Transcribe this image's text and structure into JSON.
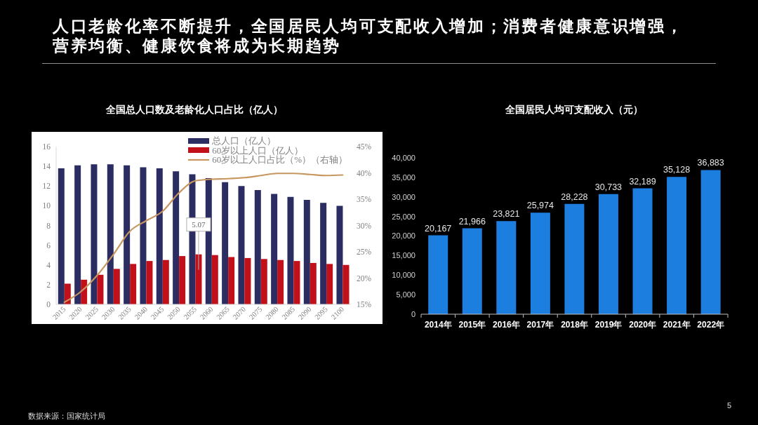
{
  "chart_data": [
    {
      "type": "bar",
      "title": "全国总人口数及老龄化人口占比（亿人）",
      "annotations": [
        "人口老龄化率不断提升，全国居民人均可支配收入增加；消费者健康意识增强，营养均衡、健康饮食将成为长期趋势"
      ],
      "categories": [
        "2015",
        "2020",
        "2025",
        "2030",
        "2035",
        "2040",
        "2045",
        "2050",
        "2055",
        "2060",
        "2065",
        "2070",
        "2075",
        "2080",
        "2085",
        "2090",
        "2095",
        "2100"
      ],
      "series": [
        {
          "name": "总人口（亿人）",
          "color": "#2b2c61",
          "values": [
            13.8,
            14.1,
            14.2,
            14.2,
            14.1,
            13.9,
            13.8,
            13.5,
            13.2,
            12.8,
            12.4,
            12.0,
            11.6,
            11.2,
            10.9,
            10.6,
            10.3,
            10.0
          ]
        },
        {
          "name": "60岁以上人口（亿人）",
          "color": "#c1101a",
          "values": [
            2.1,
            2.5,
            3.0,
            3.6,
            4.1,
            4.4,
            4.5,
            4.9,
            5.07,
            5.0,
            4.8,
            4.7,
            4.6,
            4.5,
            4.4,
            4.2,
            4.1,
            4.0
          ],
          "value_labels": [
            null,
            null,
            null,
            null,
            null,
            null,
            null,
            null,
            "5.07",
            null,
            null,
            null,
            null,
            null,
            null,
            null,
            null,
            null
          ]
        },
        {
          "name": "60岁以上人口占比（%）（右轴）",
          "type": "line",
          "axis": "y2",
          "color": "#c8965f",
          "values": [
            15.4,
            17.4,
            20.5,
            24.5,
            28.9,
            30.9,
            32.7,
            36.2,
            38.5,
            38.8,
            38.9,
            39.1,
            39.5,
            39.9,
            39.9,
            39.7,
            39.5,
            39.6
          ]
        }
      ],
      "ylim": [
        0,
        16
      ],
      "yticks": [
        0,
        2,
        4,
        6,
        8,
        10,
        12,
        14,
        16
      ],
      "y2lim": [
        15,
        45
      ],
      "y2ticks": [
        {
          "value": 15,
          "label": "15%"
        },
        {
          "value": 20,
          "label": "20%"
        },
        {
          "value": 25,
          "label": "25%"
        },
        {
          "value": 30,
          "label": "30%"
        },
        {
          "value": 35,
          "label": "35%"
        },
        {
          "value": 40,
          "label": "40%"
        },
        {
          "value": 45,
          "label": "45%"
        }
      ],
      "legend": "top right",
      "marker": "none",
      "line_style": "solid"
    },
    {
      "type": "bar",
      "title": "全国居民人均可支配收入（元）",
      "annotations": [
        "数据来源：国家统计局",
        "5"
      ],
      "categories": [
        "2014年",
        "2015年",
        "2016年",
        "2017年",
        "2018年",
        "2019年",
        "2020年",
        "2021年",
        "2022年"
      ],
      "values": [
        20167,
        21966,
        23821,
        25974,
        28228,
        30733,
        32189,
        35128,
        36883
      ],
      "color": "#1c7fe0",
      "value_labels": [
        "20,167",
        "21,966",
        "23,821",
        "25,974",
        "28,228",
        "30,733",
        "32,189",
        "35,128",
        "36,883"
      ],
      "ylim": [
        0,
        40000
      ],
      "yticks": [
        0,
        {
          "value": 5000,
          "label": "5,000"
        },
        {
          "value": 10000,
          "label": "10,000"
        },
        {
          "value": 15000,
          "label": "15,000"
        },
        {
          "value": 20000,
          "label": "20,000"
        },
        {
          "value": 25000,
          "label": "25,000"
        },
        {
          "value": 30000,
          "label": "30,000"
        },
        {
          "value": 35000,
          "label": "35,000"
        },
        {
          "value": 40000,
          "label": "40,000"
        }
      ]
    }
  ]
}
